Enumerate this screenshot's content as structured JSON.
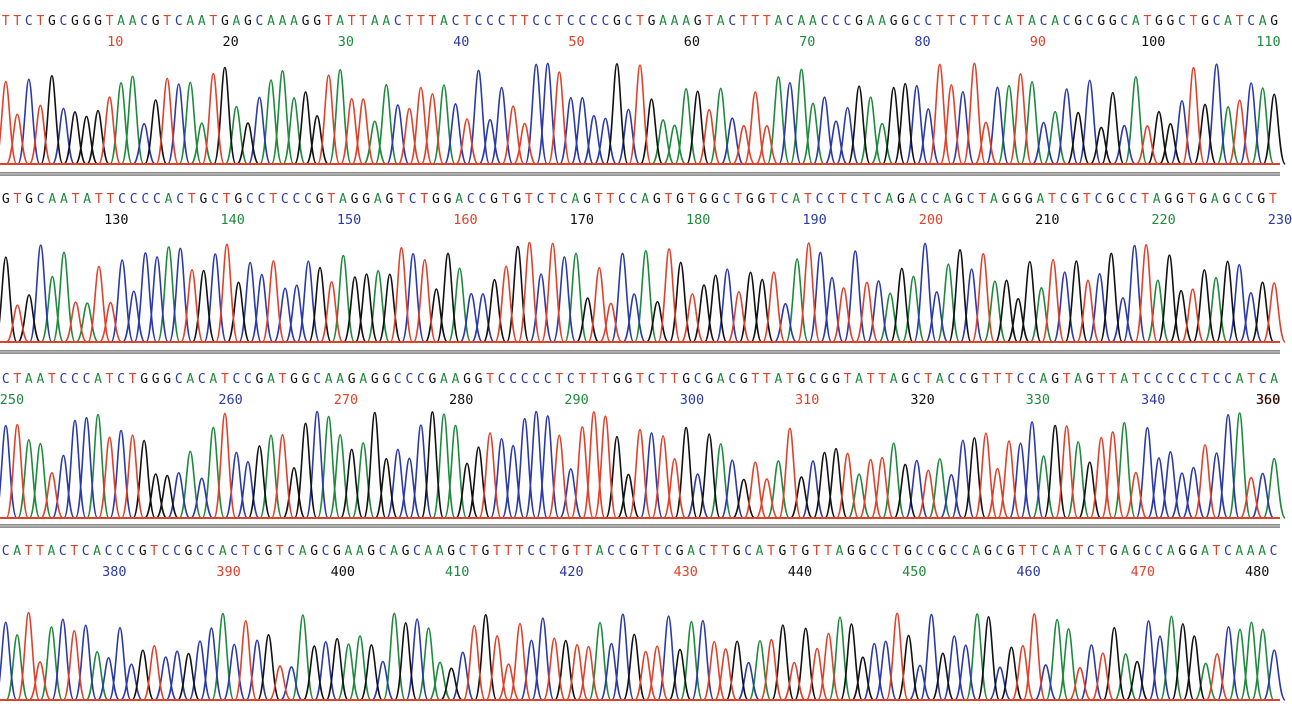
{
  "colors": {
    "A": "#1e8a3c",
    "C": "#2b3aa8",
    "G": "#111111",
    "T": "#e0412a"
  },
  "chart_data": [
    {
      "type": "line",
      "panel": 1,
      "sequence": "TTCTGCGGGTAACGTCAATGAGCAAAGGTATTAACTTTACTCCCTTCCTCCCCGCTGAAAGTACTTTACAACCCGAAGGCCTTCTTCATACACGCGGCATGGCTGCATCAG",
      "positions": [
        10,
        20,
        30,
        40,
        50,
        60,
        70,
        80,
        90,
        100,
        110
      ]
    },
    {
      "type": "line",
      "panel": 2,
      "sequence": "GTGCAATATTCCCCACTGCTGCCTCCCGTAGGAGTCTGGACCGTGTCTCAGTTCCAGTGTGGCTGGTCATCCTCTCAGACCAGCTAGGGATCGTCGCCTAGGTGAGCCGT",
      "positions": [
        130,
        140,
        150,
        160,
        170,
        180,
        190,
        200,
        210,
        220,
        230
      ]
    },
    {
      "type": "line",
      "panel": 3,
      "sequence": "CTAATCCCATCTGGGCACATCCGATGGCAAGAGGCCCGAAGGTCCCCCTCTTTGGTCTTGCGACGTTATGCGGTATTAGCTACCGTTTCCAGTAGTTATCCCCCTCCATCA",
      "positions": [
        250,
        260,
        270,
        280,
        290,
        300,
        310,
        320,
        330,
        340,
        350,
        360
      ]
    },
    {
      "type": "line",
      "panel": 4,
      "sequence": "CATTACTCACCCGTCCGCCACTCGTCAGCGAAGCAGCAAGCTGTTTCCTGTTACCGTTCGACTTGCATGTGTTAGGCCTGCCGCCAGCGTTCAATCTGAGCCAGGATCAAAC",
      "positions": [
        380,
        390,
        400,
        410,
        420,
        430,
        440,
        450,
        460,
        470,
        480
      ]
    }
  ]
}
